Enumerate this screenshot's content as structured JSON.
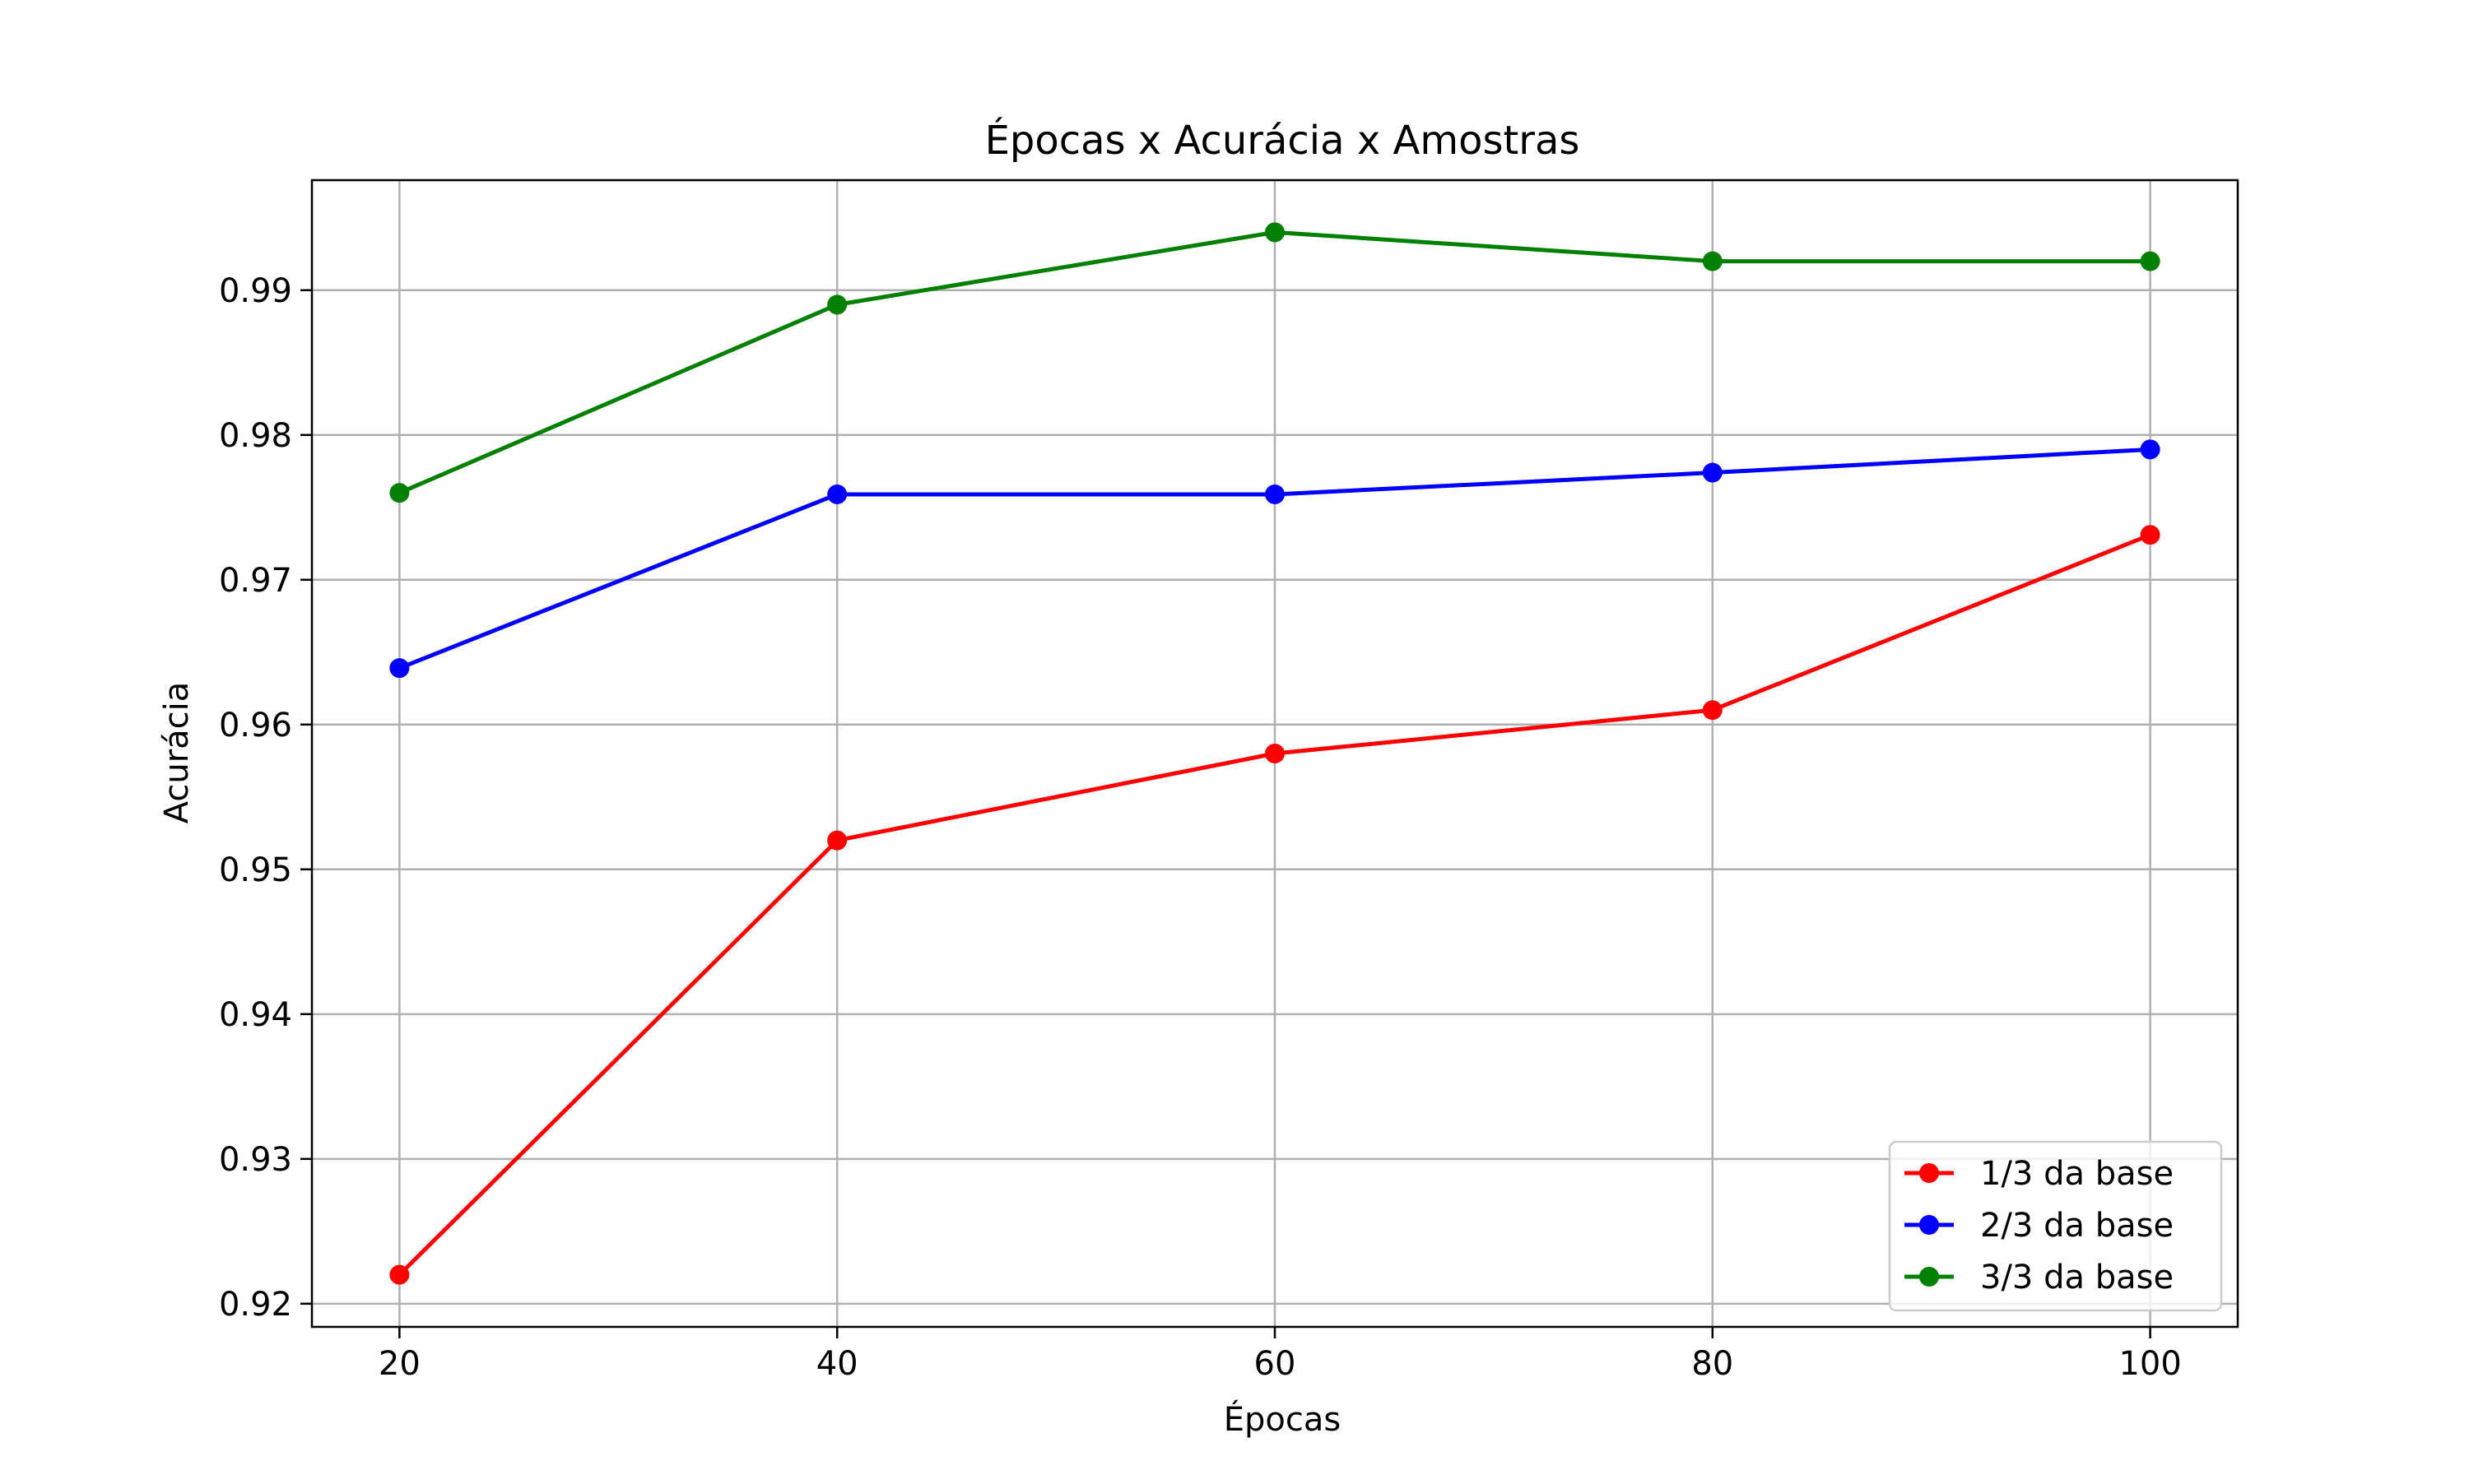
{
  "chart_data": {
    "type": "line",
    "title": "Épocas x Acurácia x Amostras",
    "xlabel": "Épocas",
    "ylabel": "Acurácia",
    "x": [
      20,
      40,
      60,
      80,
      100
    ],
    "xticks": [
      "20",
      "40",
      "60",
      "80",
      "100"
    ],
    "yticks": [
      "0.92",
      "0.93",
      "0.94",
      "0.95",
      "0.96",
      "0.97",
      "0.98",
      "0.99"
    ],
    "ytick_values": [
      0.92,
      0.93,
      0.94,
      0.95,
      0.96,
      0.97,
      0.98,
      0.99
    ],
    "xlim": [
      16,
      104
    ],
    "ylim": [
      0.9184,
      0.9976
    ],
    "grid": true,
    "legend_position": "lower-right",
    "series": [
      {
        "name": "1/3 da base",
        "color": "#ff0000",
        "values": [
          0.922,
          0.952,
          0.958,
          0.961,
          0.9731
        ]
      },
      {
        "name": "2/3 da base",
        "color": "#0000ff",
        "values": [
          0.9639,
          0.9759,
          0.9759,
          0.9774,
          0.979
        ]
      },
      {
        "name": "3/3 da base",
        "color": "#008000",
        "values": [
          0.976,
          0.989,
          0.994,
          0.992,
          0.992
        ]
      }
    ]
  }
}
